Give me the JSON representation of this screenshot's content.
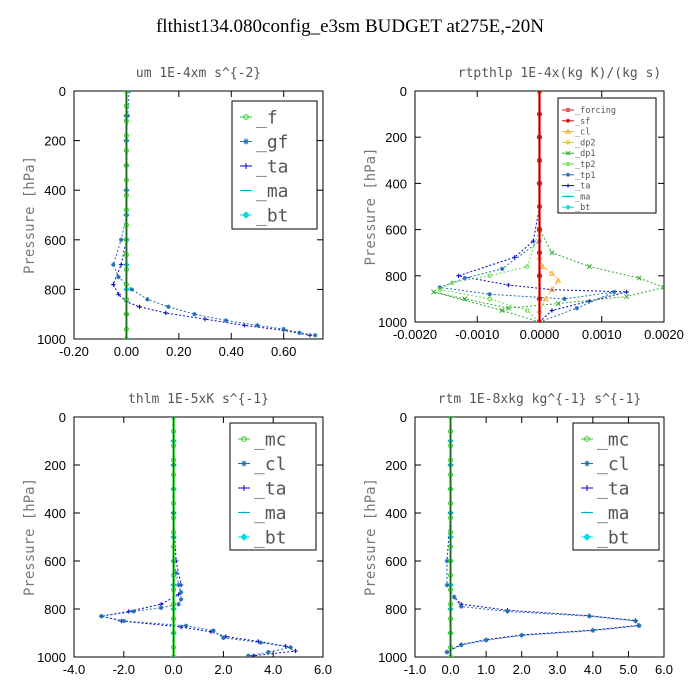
{
  "title": "flthist134.080config_e3sm  BUDGET at275E,-20N",
  "chart_data": [
    {
      "type": "line",
      "title": "um  1E-4xm s^{-2}",
      "ylabel": "Pressure [hPa]",
      "xlim": [
        -0.2,
        0.75
      ],
      "ylim": [
        1000,
        0
      ],
      "xticks": [
        "-0.20",
        "0.00",
        "0.20",
        "0.40",
        "0.60"
      ],
      "yticks": [
        "0",
        "200",
        "400",
        "600",
        "800",
        "1000"
      ],
      "legend_position": "top-right",
      "series": [
        {
          "name": "_f",
          "color": "#33cc33",
          "marker": "circle",
          "x": [
            0,
            0,
            0,
            0,
            0,
            0,
            0,
            0,
            0,
            0,
            0,
            0,
            0,
            0,
            0,
            0,
            0,
            0
          ],
          "y": [
            0,
            60,
            120,
            180,
            240,
            300,
            360,
            420,
            480,
            540,
            600,
            660,
            720,
            780,
            840,
            900,
            960,
            1000
          ]
        },
        {
          "name": "_gf",
          "color": "#1f6fb5",
          "marker": "star",
          "x": [
            0.01,
            0.005,
            0,
            0,
            0,
            0,
            -0.02,
            -0.05,
            -0.03,
            0.02,
            0.08,
            0.16,
            0.26,
            0.38,
            0.5,
            0.6,
            0.66,
            0.72
          ],
          "y": [
            0,
            100,
            200,
            300,
            400,
            500,
            600,
            700,
            750,
            800,
            840,
            870,
            900,
            925,
            945,
            960,
            975,
            985
          ]
        },
        {
          "name": "_ta",
          "color": "#0000cc",
          "marker": "plus",
          "x": [
            0,
            0,
            0,
            0,
            0,
            0,
            0,
            -0.02,
            -0.05,
            -0.03,
            0,
            0.05,
            0.15,
            0.3,
            0.45,
            0.6,
            0.7
          ],
          "y": [
            0,
            100,
            200,
            300,
            400,
            500,
            600,
            700,
            780,
            820,
            850,
            870,
            895,
            920,
            945,
            965,
            985
          ]
        },
        {
          "name": "_ma",
          "color": "#00aacc",
          "marker": "dash",
          "x": [
            0,
            0,
            0,
            0,
            0,
            0,
            0,
            0,
            0,
            0,
            0
          ],
          "y": [
            0,
            100,
            200,
            300,
            400,
            500,
            600,
            700,
            800,
            900,
            1000
          ]
        },
        {
          "name": "_bt",
          "color": "#00dddd",
          "marker": "diamond",
          "x": [
            0,
            0,
            0,
            0,
            0,
            0,
            0,
            0,
            0,
            0,
            0
          ],
          "y": [
            0,
            100,
            200,
            300,
            400,
            500,
            600,
            700,
            800,
            900,
            1000
          ]
        }
      ]
    },
    {
      "type": "line",
      "title": "rtpthlp  1E-4x(kg K)/(kg s)",
      "ylabel": "Pressure [hPa]",
      "xlim": [
        -0.002,
        0.002
      ],
      "ylim": [
        1000,
        0
      ],
      "xticks": [
        "-0.0020",
        "-0.0010",
        "0.0000",
        "0.0010",
        "0.0020"
      ],
      "yticks": [
        "0",
        "200",
        "400",
        "600",
        "800",
        "1000"
      ],
      "legend_position": "top-right",
      "series": [
        {
          "name": "_forcing",
          "color": "#dd2222",
          "marker": "circle",
          "x": [
            0,
            0,
            0,
            0,
            0,
            0,
            0,
            0,
            0,
            0,
            0
          ],
          "y": [
            0,
            100,
            200,
            300,
            400,
            500,
            600,
            700,
            800,
            900,
            1000
          ]
        },
        {
          "name": "_sf",
          "color": "#cc0000",
          "marker": "star",
          "x": [
            0,
            0,
            0,
            0,
            0,
            0,
            0,
            0,
            0,
            0,
            0
          ],
          "y": [
            0,
            100,
            200,
            300,
            400,
            500,
            600,
            700,
            800,
            900,
            1000
          ]
        },
        {
          "name": "_cl",
          "color": "#ffaa33",
          "marker": "triangle",
          "x": [
            0,
            0,
            0,
            0,
            5e-05,
            0.0002,
            0.0003,
            0.0002,
            0.0001,
            0,
            0
          ],
          "y": [
            0,
            300,
            600,
            720,
            760,
            790,
            820,
            860,
            900,
            950,
            1000
          ]
        },
        {
          "name": "_dp2",
          "color": "#ddcc22",
          "marker": "square",
          "x": [
            0,
            0,
            0,
            0,
            0,
            0,
            0
          ],
          "y": [
            0,
            200,
            400,
            600,
            800,
            900,
            1000
          ]
        },
        {
          "name": "_dp1",
          "color": "#33aa33",
          "marker": "cross",
          "x": [
            0,
            0,
            0,
            0.0002,
            0.0008,
            0.0016,
            0.002,
            0.0014,
            0.0003,
            -0.0005,
            -0.0012,
            -0.0017,
            -0.0006,
            0
          ],
          "y": [
            0,
            400,
            600,
            700,
            760,
            810,
            850,
            890,
            920,
            940,
            900,
            870,
            950,
            1000
          ]
        },
        {
          "name": "_tp2",
          "color": "#66dd44",
          "marker": "circle",
          "x": [
            0,
            0,
            0,
            -0.0002,
            -0.0008,
            -0.0014,
            -0.0016,
            -0.0008,
            -0.0002,
            0
          ],
          "y": [
            0,
            400,
            600,
            760,
            800,
            830,
            860,
            900,
            950,
            1000
          ]
        },
        {
          "name": "_tp1",
          "color": "#1f6fb5",
          "marker": "star",
          "x": [
            0,
            0,
            0,
            -0.0006,
            -0.0012,
            -0.0016,
            -0.0008,
            0.0004,
            0.0012,
            0.0006,
            0
          ],
          "y": [
            0,
            500,
            650,
            770,
            810,
            850,
            880,
            900,
            870,
            940,
            1000
          ]
        },
        {
          "name": "_ta",
          "color": "#0000cc",
          "marker": "plus",
          "x": [
            0,
            0,
            -0.0001,
            -0.0004,
            -0.0013,
            -0.0005,
            0.0002,
            0.0014,
            0.0008,
            0.0002,
            0
          ],
          "y": [
            0,
            500,
            650,
            720,
            800,
            840,
            860,
            870,
            910,
            950,
            1000
          ]
        },
        {
          "name": "_ma",
          "color": "#00aacc",
          "marker": "dash",
          "x": [
            0,
            0,
            0,
            0,
            0,
            0,
            0
          ],
          "y": [
            0,
            200,
            400,
            600,
            800,
            900,
            1000
          ]
        },
        {
          "name": "_bt",
          "color": "#00dddd",
          "marker": "diamond",
          "x": [
            0,
            0,
            0,
            0,
            0,
            0,
            0
          ],
          "y": [
            0,
            200,
            400,
            600,
            800,
            900,
            1000
          ]
        }
      ]
    },
    {
      "type": "line",
      "title": "thlm  1E-5xK s^{-1}",
      "ylabel": "Pressure [hPa]",
      "xlim": [
        -4,
        6
      ],
      "ylim": [
        1000,
        0
      ],
      "xticks": [
        "-4.0",
        "-2.0",
        "0.0",
        "2.0",
        "4.0",
        "6.0"
      ],
      "yticks": [
        "0",
        "200",
        "400",
        "600",
        "800",
        "1000"
      ],
      "legend_position": "top-right",
      "series": [
        {
          "name": "_mc",
          "color": "#33cc33",
          "marker": "circle",
          "x": [
            0,
            0,
            0,
            0,
            0,
            0,
            0,
            0,
            0,
            0,
            0,
            0,
            0,
            0,
            0,
            0,
            0,
            0
          ],
          "y": [
            0,
            60,
            120,
            180,
            240,
            300,
            360,
            420,
            480,
            540,
            600,
            660,
            720,
            780,
            840,
            900,
            960,
            1000
          ]
        },
        {
          "name": "_cl",
          "color": "#1f6fb5",
          "marker": "star",
          "x": [
            0,
            0,
            0,
            0,
            0.1,
            0.2,
            0.3,
            0.3,
            0.2,
            -0.5,
            -1.6,
            -2.9,
            -2.0,
            0.5,
            1.6,
            2.0,
            3.5,
            4.7,
            3.8,
            3.0
          ],
          "y": [
            0,
            200,
            400,
            600,
            650,
            700,
            730,
            760,
            780,
            795,
            810,
            830,
            850,
            870,
            890,
            920,
            940,
            960,
            980,
            995
          ]
        },
        {
          "name": "_ta",
          "color": "#0000cc",
          "marker": "plus",
          "x": [
            0,
            0,
            0,
            0.1,
            0.3,
            0.2,
            -0.5,
            -1.8,
            -2.9,
            -2.1,
            0.3,
            1.5,
            2.1,
            3.4,
            4.5,
            4.9,
            3.2
          ],
          "y": [
            0,
            200,
            400,
            600,
            700,
            740,
            780,
            810,
            830,
            850,
            875,
            895,
            915,
            935,
            955,
            975,
            995
          ]
        },
        {
          "name": "_ma",
          "color": "#00aacc",
          "marker": "dash",
          "x": [
            0,
            0,
            0,
            0,
            0,
            0,
            0,
            0,
            0,
            0,
            0
          ],
          "y": [
            0,
            100,
            200,
            300,
            400,
            500,
            600,
            700,
            800,
            900,
            1000
          ]
        },
        {
          "name": "_bt",
          "color": "#00dddd",
          "marker": "diamond",
          "x": [
            0,
            0,
            0,
            0,
            0,
            0,
            0,
            0,
            0,
            0,
            0
          ],
          "y": [
            0,
            100,
            200,
            300,
            400,
            500,
            600,
            700,
            800,
            900,
            1000
          ]
        }
      ]
    },
    {
      "type": "line",
      "title": "rtm  1E-8xkg kg^{-1} s^{-1}",
      "ylabel": "Pressure [hPa]",
      "xlim": [
        -1,
        6
      ],
      "ylim": [
        1000,
        0
      ],
      "xticks": [
        "-1.0",
        "0.0",
        "1.0",
        "2.0",
        "3.0",
        "4.0",
        "5.0",
        "6.0"
      ],
      "yticks": [
        "0",
        "200",
        "400",
        "600",
        "800",
        "1000"
      ],
      "legend_position": "top-right",
      "series": [
        {
          "name": "_mc",
          "color": "#33cc33",
          "marker": "circle",
          "x": [
            0,
            0,
            0,
            0,
            0,
            0,
            0,
            0,
            0,
            0,
            0,
            0,
            0,
            0,
            0,
            0,
            0,
            0
          ],
          "y": [
            0,
            60,
            120,
            180,
            240,
            300,
            360,
            420,
            480,
            540,
            600,
            660,
            720,
            780,
            840,
            900,
            960,
            1000
          ]
        },
        {
          "name": "_cl",
          "color": "#1f6fb5",
          "marker": "star",
          "x": [
            0,
            0,
            0,
            -0.1,
            -0.1,
            0.1,
            0.3,
            1.6,
            3.9,
            5.2,
            5.3,
            4.0,
            2.0,
            1.0,
            0.3,
            -0.1
          ],
          "y": [
            0,
            200,
            400,
            600,
            700,
            750,
            790,
            810,
            830,
            850,
            870,
            890,
            910,
            930,
            950,
            980
          ]
        },
        {
          "name": "_ta",
          "color": "#0000cc",
          "marker": "plus",
          "x": [
            0,
            0,
            0,
            -0.1,
            -0.1,
            0.1,
            0.3,
            1.6,
            3.9,
            5.2,
            5.3,
            4.0,
            2.0,
            1.0,
            0.3,
            -0.1
          ],
          "y": [
            0,
            200,
            400,
            600,
            700,
            750,
            780,
            805,
            828,
            848,
            868,
            888,
            908,
            928,
            948,
            978
          ]
        },
        {
          "name": "_ma",
          "color": "#00aacc",
          "marker": "dash",
          "x": [
            0,
            0,
            0,
            0,
            0,
            0,
            0,
            0,
            0,
            0,
            0
          ],
          "y": [
            0,
            100,
            200,
            300,
            400,
            500,
            600,
            700,
            800,
            900,
            1000
          ]
        },
        {
          "name": "_bt",
          "color": "#00dddd",
          "marker": "diamond",
          "x": [
            0,
            0,
            0,
            0,
            0,
            0,
            0,
            0,
            0,
            0,
            0
          ],
          "y": [
            0,
            100,
            200,
            300,
            400,
            500,
            600,
            700,
            800,
            900,
            1000
          ]
        }
      ]
    }
  ]
}
